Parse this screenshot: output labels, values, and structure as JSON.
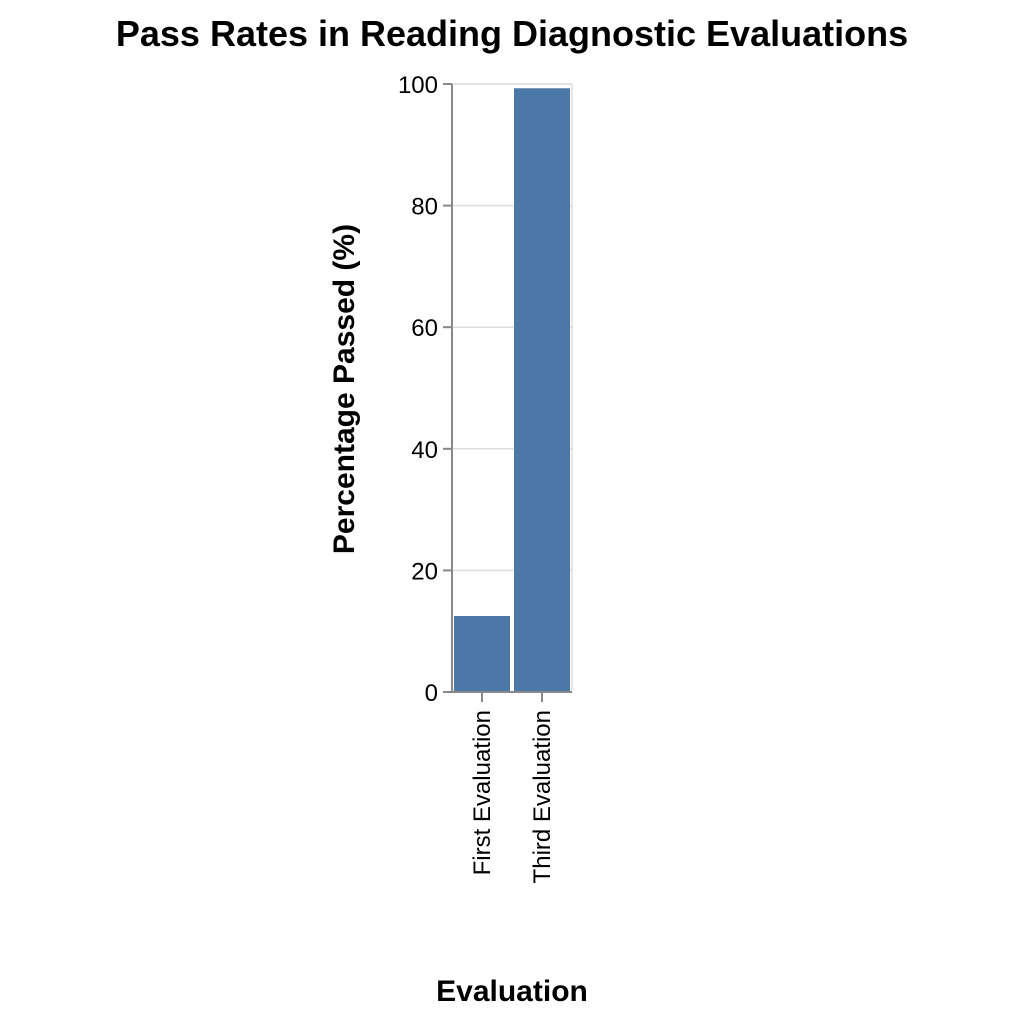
{
  "chart_data": {
    "type": "bar",
    "title": "Pass Rates in Reading Diagnostic Evaluations",
    "xlabel": "Evaluation",
    "ylabel": "Percentage Passed (%)",
    "categories": [
      "First Evaluation",
      "Third Evaluation"
    ],
    "values": [
      12.5,
      99.3
    ],
    "ylim": [
      0,
      100
    ],
    "yticks": [
      "0",
      "20",
      "40",
      "60",
      "80",
      "100"
    ],
    "grid": true,
    "legend": "none",
    "colors": {
      "bar": "#4c78a8",
      "grid": "#dddddd",
      "axis": "#888888"
    }
  }
}
